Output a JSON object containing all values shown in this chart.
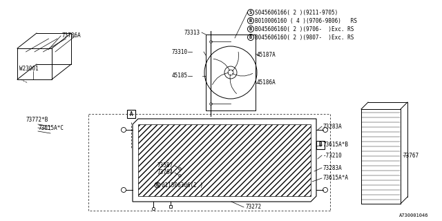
{
  "background_color": "#ffffff",
  "line_color": "#000000",
  "text_color": "#000000",
  "footer": "A730001046",
  "fs": 5.5,
  "annot_S": "S045606166( 2 )(9211-9705)",
  "annot_B1": "B010006160 ( 4 )(9706-9806)   RS",
  "annot_B2": "B045606160( 2 )(9706-  )Exc. RS",
  "annot_B3": "B045606160( 2 )(9807-  )Exc. RS",
  "annot_B4": "B011506306(2 )"
}
